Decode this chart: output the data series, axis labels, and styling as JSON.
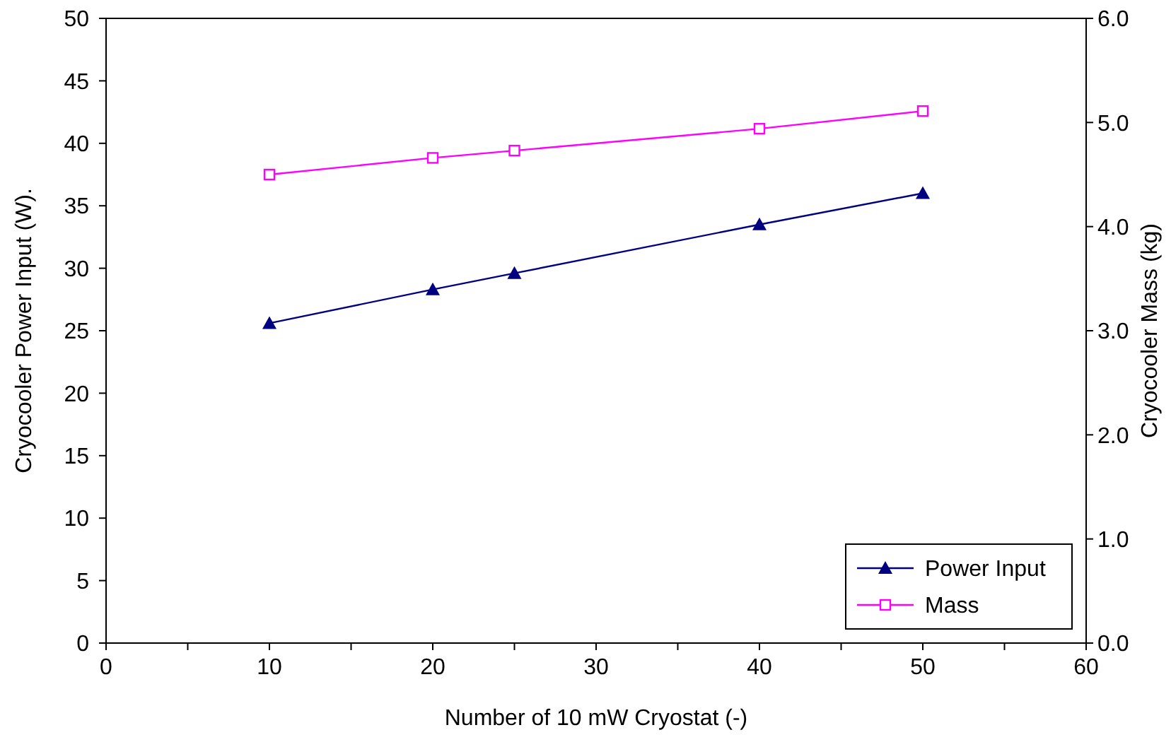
{
  "chart_data": {
    "type": "line",
    "xlabel": "Number of 10 mW Cryostat (-)",
    "ylabel": "Cryocooler Power Input (W).",
    "y2label": "Cryocooler Mass (kg)",
    "x": [
      10,
      20,
      25,
      40,
      50
    ],
    "series": [
      {
        "name": "Power Input",
        "color": "#000080",
        "marker": "triangle",
        "values": [
          25.6,
          28.3,
          29.6,
          33.5,
          36.0
        ]
      },
      {
        "name": "Mass",
        "color": "#ff00ff",
        "marker": "square",
        "axis": "y2",
        "values": [
          4.5,
          4.66,
          4.73,
          4.94,
          5.11
        ]
      }
    ],
    "xlim": [
      0,
      60
    ],
    "xticks": [
      0,
      {
        "value": 5,
        "label": null
      },
      10,
      {
        "value": 15,
        "label": null
      },
      20,
      {
        "value": 25,
        "label": null
      },
      30,
      {
        "value": 35,
        "label": null
      },
      40,
      {
        "value": 45,
        "label": null
      },
      50,
      {
        "value": 55,
        "label": null
      },
      60
    ],
    "ylim": [
      0,
      50
    ],
    "yticks": [
      0,
      5,
      10,
      15,
      20,
      25,
      30,
      35,
      40,
      45,
      50
    ],
    "y2lim": [
      0,
      6
    ],
    "y2ticks": [
      {
        "value": 0,
        "label": "0.0"
      },
      {
        "value": 1,
        "label": "1.0"
      },
      {
        "value": 2,
        "label": "2.0"
      },
      {
        "value": 3,
        "label": "3.0"
      },
      {
        "value": 4,
        "label": "4.0"
      },
      {
        "value": 5,
        "label": "5.0"
      },
      {
        "value": 6,
        "label": "6.0"
      }
    ],
    "grid": false,
    "legend": "bottom right",
    "line_style": "solid"
  }
}
